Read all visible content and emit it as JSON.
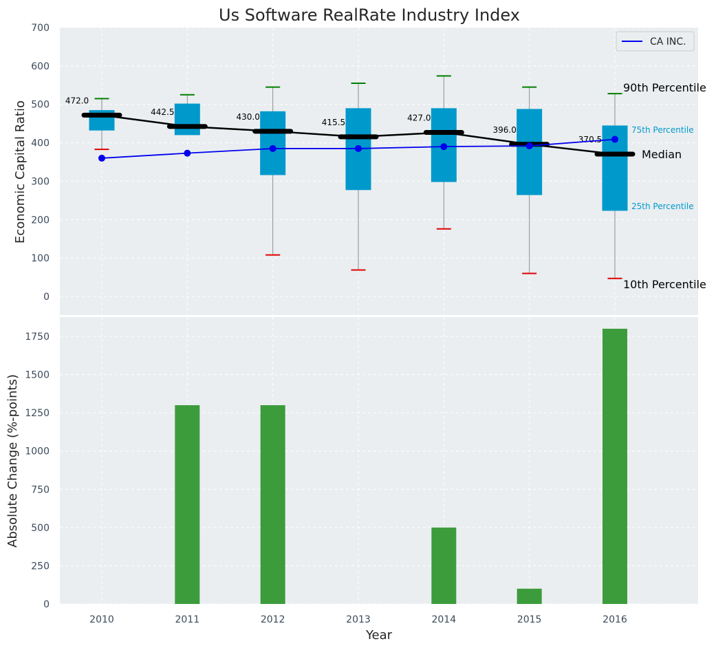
{
  "chart_data": [
    {
      "type": "box",
      "title": "Us Software RealRate Industry Index",
      "ylabel": "Economic Capital Ratio",
      "ylim": [
        -50,
        700
      ],
      "yticks": [
        0,
        100,
        200,
        300,
        400,
        500,
        600,
        700
      ],
      "categories": [
        "2010",
        "2011",
        "2012",
        "2013",
        "2014",
        "2015",
        "2016"
      ],
      "p10": [
        383,
        442,
        108,
        69,
        176,
        60,
        47
      ],
      "p25": [
        432,
        420,
        316,
        277,
        298,
        264,
        223
      ],
      "median": [
        472.0,
        442.5,
        430.0,
        415.5,
        427.0,
        396.0,
        370.5
      ],
      "median_labels": [
        "472.0",
        "442.5",
        "430.0",
        "415.5",
        "427.0",
        "396.0",
        "370.5"
      ],
      "p75": [
        485,
        502,
        482,
        490,
        490,
        488,
        445
      ],
      "p90": [
        515,
        525,
        545,
        555,
        574,
        545,
        528
      ],
      "series": [
        {
          "name": "CA INC.",
          "values": [
            360,
            373,
            385,
            385,
            390,
            392,
            409
          ]
        }
      ],
      "annotations": {
        "p90": "90th Percentile",
        "p75": "75th Percentile",
        "median": "Median",
        "p25": "25th Percentile",
        "p10": "10th Percentile"
      },
      "legend_position": "top-right",
      "grid": true
    },
    {
      "type": "bar",
      "xlabel": "Year",
      "ylabel": "Absolute Change (%-points)",
      "categories": [
        "2010",
        "2011",
        "2012",
        "2013",
        "2014",
        "2015",
        "2016"
      ],
      "values": [
        0,
        1300,
        1300,
        0,
        500,
        100,
        1800
      ],
      "ylim": [
        0,
        1880
      ],
      "yticks": [
        0,
        250,
        500,
        750,
        1000,
        1250,
        1500,
        1750
      ],
      "grid": true
    }
  ],
  "colors": {
    "background": "#eaeef0",
    "box": "#0099cc",
    "whisker": "#8a8f94",
    "p90_cap": "#008000",
    "p10_cap": "#e00000",
    "median": "#000000",
    "company": "#0000ee",
    "bar": "#3c9c3c",
    "pct_small_text": "#0099cc"
  }
}
